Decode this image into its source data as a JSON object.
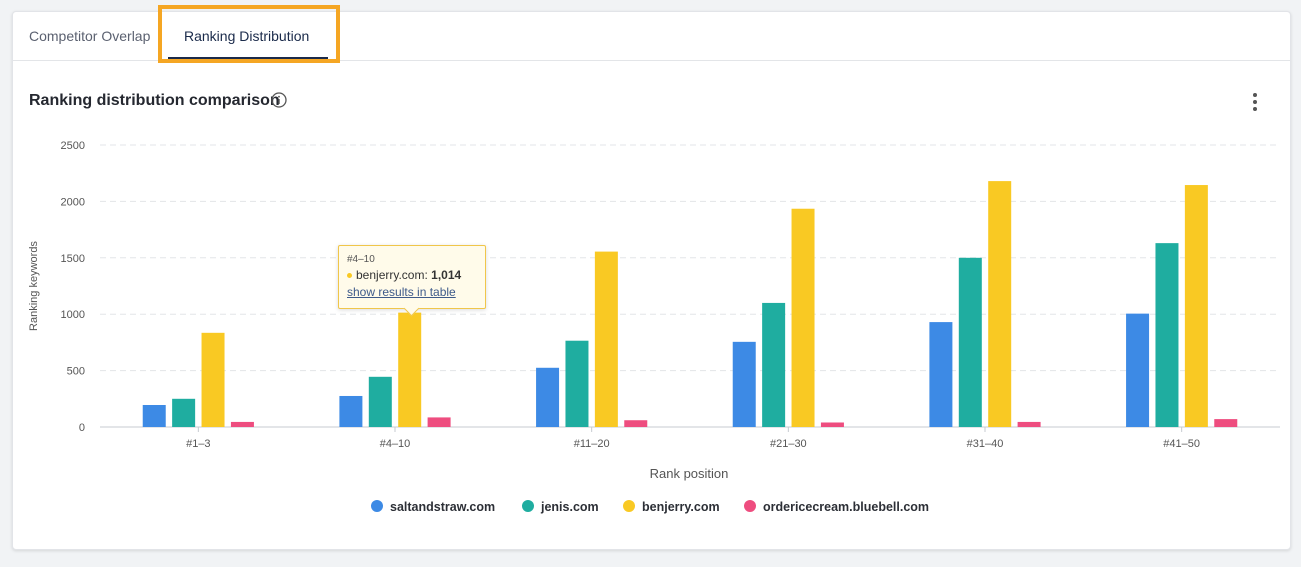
{
  "tabs": [
    {
      "label": "Competitor Overlap"
    },
    {
      "label": "Ranking Distribution"
    }
  ],
  "title": "Ranking distribution comparison",
  "icons": {
    "info": "info-icon",
    "more": "kebab-menu-icon"
  },
  "highlight_color": "#f5a623",
  "tooltip": {
    "title": "#4–10",
    "series": "benjerry.com:",
    "value": "1,014",
    "link": "show results in table"
  },
  "chart_data": {
    "type": "bar",
    "title": "Ranking distribution comparison",
    "xlabel": "Rank position",
    "ylabel": "Ranking keywords",
    "ylim": [
      0,
      2500
    ],
    "yticks": [
      0,
      500,
      1000,
      1500,
      2000,
      2500
    ],
    "grid": true,
    "legend_position": "bottom",
    "categories": [
      "#1–3",
      "#4–10",
      "#11–20",
      "#21–30",
      "#31–40",
      "#41–50"
    ],
    "series": [
      {
        "name": "saltandstraw.com",
        "color": "#3d8ae5",
        "values": [
          195,
          275,
          525,
          755,
          930,
          1005
        ]
      },
      {
        "name": "jenis.com",
        "color": "#1fada0",
        "values": [
          250,
          445,
          765,
          1100,
          1500,
          1630
        ]
      },
      {
        "name": "benjerry.com",
        "color": "#f9c923",
        "values": [
          835,
          1014,
          1555,
          1935,
          2180,
          2145
        ]
      },
      {
        "name": "ordericecream.bluebell.com",
        "color": "#ee4d7f",
        "values": [
          45,
          85,
          60,
          40,
          45,
          70
        ]
      }
    ]
  }
}
